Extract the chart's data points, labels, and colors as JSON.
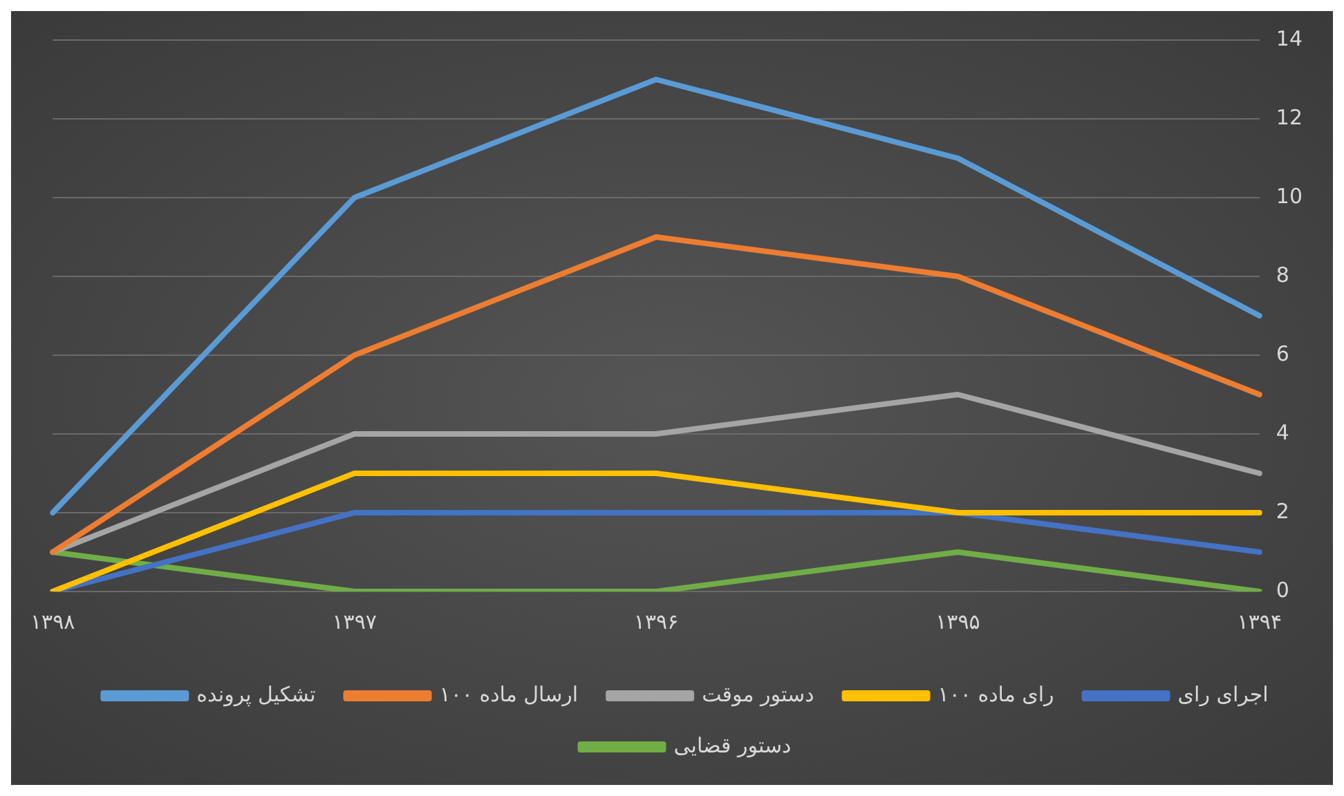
{
  "chart_data": {
    "type": "line",
    "categories": [
      "۱۳۹۸",
      "۱۳۹۷",
      "۱۳۹۶",
      "۱۳۹۵",
      "۱۳۹۴"
    ],
    "series": [
      {
        "name": "تشکیل پرونده",
        "color": "#5b9bd5",
        "values": [
          2,
          10,
          13,
          11,
          7
        ]
      },
      {
        "name": "ارسال ماده ۱۰۰",
        "color": "#ed7d31",
        "values": [
          1,
          6,
          9,
          8,
          5
        ]
      },
      {
        "name": "دستور موقت",
        "color": "#a5a5a5",
        "values": [
          1,
          4,
          4,
          5,
          3
        ]
      },
      {
        "name": "رای ماده ۱۰۰",
        "color": "#ffc000",
        "values": [
          0,
          3,
          3,
          2,
          2
        ]
      },
      {
        "name": "اجرای رای",
        "color": "#4472c4",
        "values": [
          0,
          2,
          2,
          2,
          1
        ]
      },
      {
        "name": "دستور قضایی",
        "color": "#70ad47",
        "values": [
          1,
          0,
          0,
          1,
          0
        ]
      }
    ],
    "ylim": [
      0,
      14
    ],
    "yticks": [
      0,
      2,
      4,
      6,
      8,
      10,
      12,
      14
    ],
    "grid": "y",
    "legend": "bottom",
    "marker": "none",
    "line_style": "solid"
  }
}
